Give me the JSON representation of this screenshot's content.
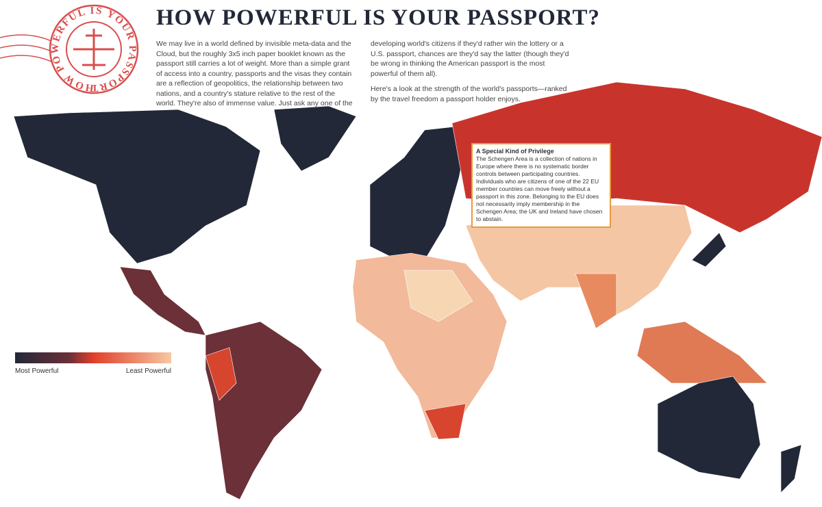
{
  "header": {
    "title": "HOW POWERFUL IS YOUR PASSPORT?",
    "stamp": "HOW POWERFUL IS YOUR PASSPORT?"
  },
  "intro": {
    "column_1": "We may live in a world defined by invisible meta-data and the Cloud, but the roughly 3x5 inch paper booklet known as the passport still carries a lot of weight. More than a simple grant of access into a country, passports and the visas they contain are a reflection of geopolitics, the relationship between two nations, and a country's stature relative to the rest of the world. They're also of immense value. Just ask any one of the",
    "column_2": [
      "developing world's citizens if they'd rather win the lottery or a U.S. passport, chances are they'd say the latter (though they'd be wrong in thinking the American passport is the most powerful of them all).",
      "Here's a look at the strength of the world's passports—ranked by the travel freedom a passport holder enjoys."
    ]
  },
  "callout": {
    "title": "A Special Kind of Privilege",
    "body": "The Schengen Area is a collection of nations in Europe where there is no systematic border controls between participating countries. Individuals who are citizens of one of the 22 EU member countries can move freely without a passport in this zone. Belonging to the EU does not necessarily imply membership in the Schengen Area; the UK and Ireland have chosen to abstain."
  },
  "legend": {
    "low": "Most Powerful",
    "high": "Least Powerful"
  }
}
